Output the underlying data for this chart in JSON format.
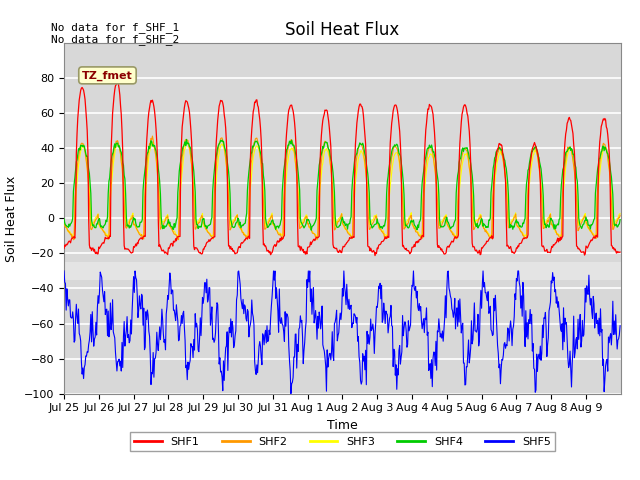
{
  "title": "Soil Heat Flux",
  "ylabel": "Soil Heat Flux",
  "xlabel": "Time",
  "ylim": [
    -100,
    100
  ],
  "xtick_labels": [
    "Jul 25",
    "Jul 26",
    "Jul 27",
    "Jul 28",
    "Jul 29",
    "Jul 30",
    "Jul 31",
    "Aug 1",
    "Aug 2",
    "Aug 3",
    "Aug 4",
    "Aug 5",
    "Aug 6",
    "Aug 7",
    "Aug 8",
    "Aug 9"
  ],
  "yticks": [
    -100,
    -80,
    -60,
    -40,
    -20,
    0,
    20,
    40,
    60,
    80
  ],
  "nodata_text": [
    "No data for f_SHF_1",
    "No data for f_SHF_2"
  ],
  "annotation_text": "TZ_fmet",
  "colors": {
    "SHF1": "#ff0000",
    "SHF2": "#ff9900",
    "SHF3": "#ffff00",
    "SHF4": "#00cc00",
    "SHF5": "#0000ff"
  },
  "legend_entries": [
    "SHF1",
    "SHF2",
    "SHF3",
    "SHF4",
    "SHF5"
  ],
  "fig_background_color": "#ffffff",
  "plot_bg_color": "#d8d8d8",
  "title_fontsize": 12,
  "axis_label_fontsize": 9,
  "tick_fontsize": 8,
  "n_days": 16
}
